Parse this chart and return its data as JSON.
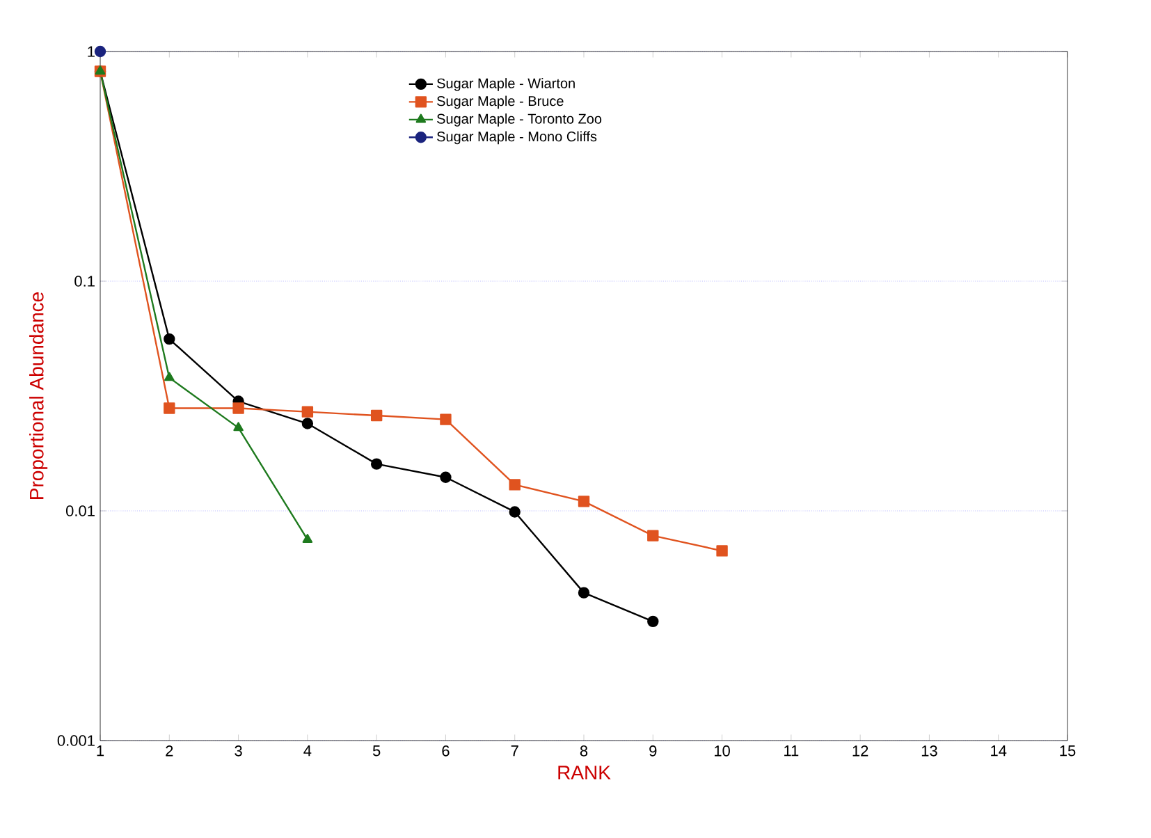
{
  "chart_data": {
    "type": "line",
    "xlabel": "RANK",
    "ylabel": "Proportional Abundance",
    "x": [
      1,
      2,
      3,
      4,
      5,
      6,
      7,
      8,
      9,
      10
    ],
    "series": [
      {
        "name": "Sugar Maple -  Wiarton",
        "color": "#000000",
        "marker": "circle",
        "values": [
          0.82,
          0.056,
          0.03,
          0.024,
          0.016,
          0.014,
          0.0099,
          0.0044,
          0.0033,
          null
        ]
      },
      {
        "name": "Sugar Maple - Bruce",
        "color": "#e0531f",
        "marker": "square",
        "values": [
          0.82,
          0.028,
          0.028,
          0.027,
          0.026,
          0.025,
          0.013,
          0.011,
          0.0078,
          0.0067
        ]
      },
      {
        "name": "Sugar Maple -  Toronto Zoo",
        "color": "#1e7a1e",
        "marker": "triangle",
        "values": [
          0.82,
          0.038,
          0.023,
          0.0075,
          null,
          null,
          null,
          null,
          null,
          null
        ]
      },
      {
        "name": "Sugar Maple -  Mono Cliffs",
        "color": "#1a237e",
        "marker": "circle",
        "values": [
          1.0,
          null,
          null,
          null,
          null,
          null,
          null,
          null,
          null,
          null
        ]
      }
    ],
    "xlim": [
      1,
      15
    ],
    "xticks": [
      1,
      2,
      3,
      4,
      5,
      6,
      7,
      8,
      9,
      10,
      11,
      12,
      13,
      14,
      15
    ],
    "ylim": [
      0.001,
      1
    ],
    "yticks": [
      0.001,
      0.01,
      0.1,
      1
    ],
    "log": "y",
    "grid": "y",
    "legend": "top",
    "line_style": "solid"
  }
}
